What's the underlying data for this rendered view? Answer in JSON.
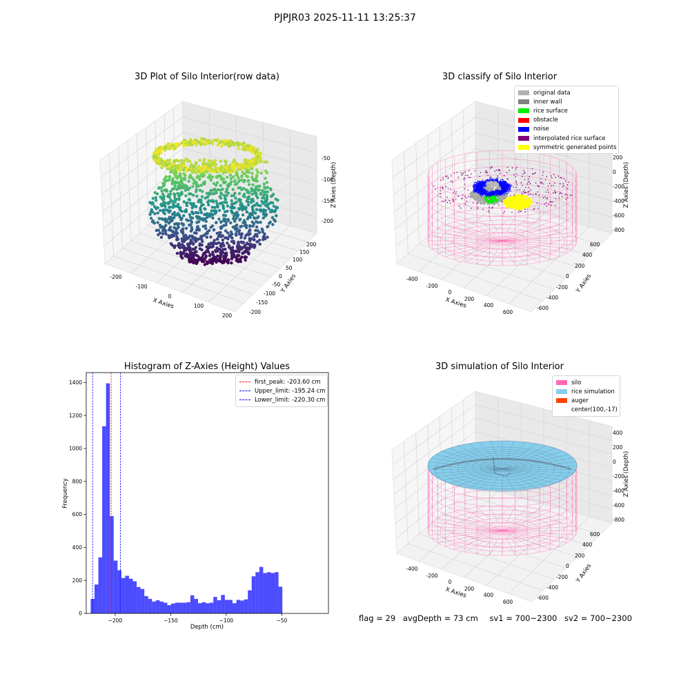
{
  "figure": {
    "suptitle": "PJPJR03 2025-11-11 13:25:37"
  },
  "panel_raw": {
    "title": "3D Plot of Silo Interior(row data)",
    "xlabel": "X Axies",
    "ylabel": "Y Axies",
    "zlabel": "Z Axies (Depth)",
    "xticks": [
      "-200",
      "-100",
      "0",
      "100",
      "200"
    ],
    "yticks": [
      "-200",
      "-150",
      "-100",
      "-50",
      "0",
      "50",
      "100",
      "150",
      "200"
    ],
    "zticks": [
      "-50",
      "-100",
      "-150",
      "-200"
    ]
  },
  "panel_classify": {
    "title": "3D classify of Silo Interior",
    "xlabel": "X Axies",
    "ylabel": "Y Axies",
    "zlabel": "Z Axies (Depth)",
    "xticks": [
      "-400",
      "-200",
      "0",
      "200",
      "400",
      "600"
    ],
    "yticks": [
      "-600",
      "-400",
      "-200",
      "0",
      "200",
      "400",
      "600"
    ],
    "zticks": [
      "200",
      "0",
      "-200",
      "-400",
      "-600",
      "-800"
    ],
    "legend": [
      {
        "label": "original data",
        "color": "#b0b0b0"
      },
      {
        "label": "inner wall",
        "color": "#808080"
      },
      {
        "label": "rice surface",
        "color": "#00ee00"
      },
      {
        "label": "obstacle",
        "color": "#ff0000"
      },
      {
        "label": "noise",
        "color": "#0000ff"
      },
      {
        "label": "interpolated rice surface",
        "color": "#800080"
      },
      {
        "label": "symmetric generated points",
        "color": "#ffff00"
      }
    ]
  },
  "panel_sim": {
    "title": "3D simulation of Silo Interior",
    "xlabel": "X Axies",
    "ylabel": "Y Axies",
    "zlabel": "Z Axies (Depth)",
    "xticks": [
      "-400",
      "-200",
      "0",
      "200",
      "400",
      "600"
    ],
    "yticks": [
      "-600",
      "-400",
      "-200",
      "0",
      "200",
      "400",
      "600"
    ],
    "zticks": [
      "400",
      "200",
      "0",
      "-200",
      "-400",
      "-600",
      "-800"
    ],
    "legend": [
      {
        "label": "silo",
        "color": "#ff69b4"
      },
      {
        "label": "rice simulation",
        "color": "#87ceeb"
      },
      {
        "label": "auger",
        "color": "#ff4500"
      },
      {
        "label": "center(100,-17)",
        "color": ""
      }
    ]
  },
  "status": {
    "flag": "flag = 29",
    "avg_depth": "avgDepth = 73 cm",
    "sv1": "sv1 = 700~2300",
    "sv2": "sv2 = 700~2300"
  },
  "chart_data": [
    {
      "type": "bar",
      "title": "Histogram of Z-Axies (Height) Values",
      "xlabel": "Depth (cm)",
      "ylabel": "Frequency",
      "xlim": [
        -226,
        -8
      ],
      "ylim": [
        0,
        1460
      ],
      "xticks": [
        -200,
        -150,
        -100,
        -50
      ],
      "yticks": [
        0,
        200,
        400,
        600,
        800,
        1000,
        1200,
        1400
      ],
      "bin_start": -222,
      "bin_width": 3.45,
      "values": [
        88,
        175,
        340,
        1135,
        1395,
        590,
        320,
        262,
        215,
        228,
        210,
        195,
        160,
        148,
        105,
        88,
        72,
        80,
        72,
        65,
        50,
        60,
        65,
        65,
        65,
        68,
        110,
        88,
        62,
        68,
        62,
        65,
        100,
        80,
        112,
        82,
        82,
        62,
        82,
        78,
        85,
        140,
        225,
        250,
        282,
        245,
        250,
        245,
        250,
        162
      ],
      "color": "#0000ff",
      "vlines": [
        {
          "label": "first_peak: -203.60 cm",
          "x": -203.6,
          "color": "#ff0000"
        },
        {
          "label": "Upper_limit: -195.24 cm",
          "x": -195.24,
          "color": "#0000ff"
        },
        {
          "label": "Lower_limit: -220.30 cm",
          "x": -220.3,
          "color": "#0000ff"
        }
      ],
      "legend_position": "top-right"
    }
  ]
}
